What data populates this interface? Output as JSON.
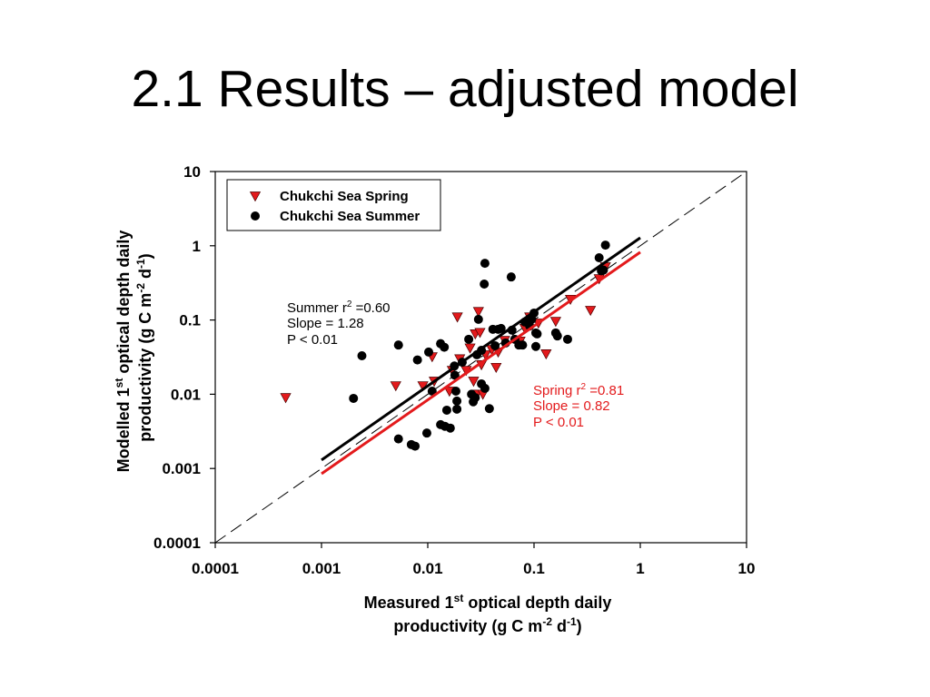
{
  "slide": {
    "title": "2.1 Results – adjusted model"
  },
  "chart_data": {
    "type": "scatter",
    "x_scale": "log",
    "y_scale": "log",
    "xlim": [
      0.0001,
      10
    ],
    "ylim": [
      0.0001,
      10
    ],
    "grid": false,
    "legend_position": "top-left",
    "x_ticks": [
      "0.0001",
      "0.001",
      "0.01",
      "0.1",
      "1",
      "10"
    ],
    "y_ticks": [
      "10",
      "1",
      "0.1",
      "0.01",
      "0.001",
      "0.0001"
    ],
    "xlabel": {
      "line1": {
        "pre": "Measured 1",
        "sup": "st",
        "post": " optical depth daily"
      },
      "line2": {
        "pre": "productivity (g C m",
        "sup1": "-2",
        "mid": " d",
        "sup2": "-1",
        "post": ")"
      }
    },
    "ylabel": {
      "line1": {
        "pre": "Modelled 1",
        "sup": "st",
        "post": " optical depth daily"
      },
      "line2": {
        "pre": "productivity (g C m",
        "sup1": "-2",
        "mid": " d",
        "sup2": "-1",
        "post": ")"
      }
    },
    "reference_line": {
      "x": [
        0.0001,
        10
      ],
      "y": [
        0.0001,
        10
      ],
      "dashed": true
    },
    "series": [
      {
        "name": "Chukchi Sea Spring",
        "marker": "triangle-down",
        "color": "#e31a1c",
        "points": [
          [
            0.00046,
            0.009
          ],
          [
            0.005,
            0.013
          ],
          [
            0.009,
            0.013
          ],
          [
            0.0115,
            0.015
          ],
          [
            0.011,
            0.032
          ],
          [
            0.019,
            0.11
          ],
          [
            0.016,
            0.011
          ],
          [
            0.017,
            0.021
          ],
          [
            0.02,
            0.03
          ],
          [
            0.023,
            0.021
          ],
          [
            0.025,
            0.042
          ],
          [
            0.027,
            0.015
          ],
          [
            0.028,
            0.065
          ],
          [
            0.03,
            0.13
          ],
          [
            0.031,
            0.068
          ],
          [
            0.029,
            0.01
          ],
          [
            0.033,
            0.01
          ],
          [
            0.032,
            0.025
          ],
          [
            0.035,
            0.034
          ],
          [
            0.04,
            0.04
          ],
          [
            0.044,
            0.023
          ],
          [
            0.046,
            0.037
          ],
          [
            0.053,
            0.053
          ],
          [
            0.074,
            0.052
          ],
          [
            0.082,
            0.077
          ],
          [
            0.091,
            0.11
          ],
          [
            0.11,
            0.091
          ],
          [
            0.13,
            0.035
          ],
          [
            0.16,
            0.096
          ],
          [
            0.22,
            0.19
          ],
          [
            0.34,
            0.135
          ],
          [
            0.41,
            0.36
          ],
          [
            0.47,
            0.52
          ]
        ],
        "fit": {
          "x": [
            0.001,
            1
          ],
          "y": [
            0.00085,
            0.82
          ]
        },
        "stats": {
          "r_label": "Spring r",
          "r_sup": "2",
          "r_value": " =0.81",
          "slope": "Slope = 0.82",
          "p": "P < 0.01"
        }
      },
      {
        "name": "Chukchi Sea Summer",
        "marker": "circle",
        "color": "#000000",
        "points": [
          [
            0.002,
            0.0088
          ],
          [
            0.0024,
            0.033
          ],
          [
            0.0053,
            0.0025
          ],
          [
            0.0053,
            0.046
          ],
          [
            0.007,
            0.0021
          ],
          [
            0.0076,
            0.002
          ],
          [
            0.008,
            0.029
          ],
          [
            0.0098,
            0.003
          ],
          [
            0.0102,
            0.037
          ],
          [
            0.011,
            0.011
          ],
          [
            0.0132,
            0.048
          ],
          [
            0.0143,
            0.043
          ],
          [
            0.0132,
            0.0039
          ],
          [
            0.0145,
            0.0037
          ],
          [
            0.0163,
            0.0035
          ],
          [
            0.0151,
            0.0061
          ],
          [
            0.0184,
            0.011
          ],
          [
            0.0188,
            0.0081
          ],
          [
            0.0188,
            0.0063
          ],
          [
            0.018,
            0.018
          ],
          [
            0.0178,
            0.024
          ],
          [
            0.0211,
            0.027
          ],
          [
            0.0243,
            0.055
          ],
          [
            0.0258,
            0.01
          ],
          [
            0.0268,
            0.0079
          ],
          [
            0.028,
            0.009
          ],
          [
            0.03,
            0.102
          ],
          [
            0.029,
            0.034
          ],
          [
            0.032,
            0.039
          ],
          [
            0.0345,
            0.58
          ],
          [
            0.034,
            0.305
          ],
          [
            0.032,
            0.0138
          ],
          [
            0.0345,
            0.012
          ],
          [
            0.038,
            0.0064
          ],
          [
            0.041,
            0.075
          ],
          [
            0.043,
            0.045
          ],
          [
            0.046,
            0.075
          ],
          [
            0.049,
            0.077
          ],
          [
            0.054,
            0.049
          ],
          [
            0.061,
            0.38
          ],
          [
            0.062,
            0.073
          ],
          [
            0.066,
            0.055
          ],
          [
            0.072,
            0.046
          ],
          [
            0.078,
            0.046
          ],
          [
            0.082,
            0.094
          ],
          [
            0.091,
            0.083
          ],
          [
            0.095,
            0.102
          ],
          [
            0.1,
            0.124
          ],
          [
            0.104,
            0.067
          ],
          [
            0.107,
            0.065
          ],
          [
            0.104,
            0.044
          ],
          [
            0.16,
            0.067
          ],
          [
            0.166,
            0.061
          ],
          [
            0.207,
            0.055
          ],
          [
            0.41,
            0.69
          ],
          [
            0.43,
            0.46
          ],
          [
            0.47,
            1.02
          ],
          [
            0.45,
            0.47
          ]
        ],
        "fit": {
          "x": [
            0.001,
            1
          ],
          "y": [
            0.0013,
            1.28
          ]
        },
        "stats": {
          "r_label": "Summer r",
          "r_sup": "2",
          "r_value": " =0.60",
          "slope": "Slope = 1.28",
          "p": "P < 0.01"
        }
      }
    ]
  }
}
